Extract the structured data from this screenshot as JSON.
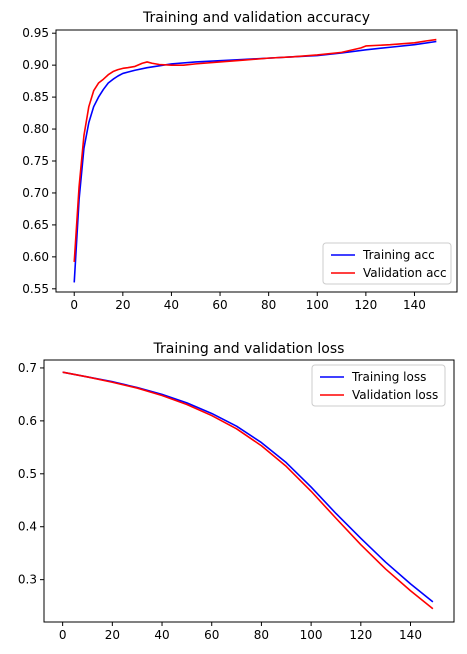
{
  "chart_data": [
    {
      "type": "line",
      "title": "Training and validation accuracy",
      "xlim": [
        -7.5,
        157.5
      ],
      "ylim": [
        0.545,
        0.955
      ],
      "xticks": [
        0,
        20,
        40,
        60,
        80,
        100,
        120,
        140
      ],
      "yticks": [
        0.55,
        0.6,
        0.65,
        0.7,
        0.75,
        0.8,
        0.85,
        0.9,
        0.95
      ],
      "ytick_labels": [
        "0.55",
        "0.60",
        "0.65",
        "0.70",
        "0.75",
        "0.80",
        "0.85",
        "0.90",
        "0.95"
      ],
      "legend_position": "lower right",
      "series": [
        {
          "name": "Training acc",
          "color": "#0000ff",
          "x": [
            0,
            2,
            4,
            6,
            8,
            10,
            12,
            14,
            16,
            18,
            20,
            25,
            30,
            35,
            40,
            50,
            60,
            70,
            80,
            90,
            100,
            110,
            120,
            130,
            140,
            149
          ],
          "values": [
            0.56,
            0.69,
            0.77,
            0.81,
            0.835,
            0.85,
            0.862,
            0.872,
            0.878,
            0.883,
            0.887,
            0.892,
            0.896,
            0.899,
            0.902,
            0.905,
            0.907,
            0.909,
            0.911,
            0.913,
            0.915,
            0.919,
            0.924,
            0.928,
            0.932,
            0.937
          ]
        },
        {
          "name": "Validation acc",
          "color": "#ff0000",
          "x": [
            0,
            2,
            4,
            6,
            8,
            10,
            12,
            14,
            16,
            18,
            20,
            22,
            25,
            28,
            30,
            32,
            35,
            40,
            45,
            50,
            60,
            70,
            80,
            90,
            100,
            110,
            118,
            120,
            130,
            140,
            145,
            149
          ],
          "values": [
            0.592,
            0.71,
            0.79,
            0.835,
            0.86,
            0.872,
            0.878,
            0.885,
            0.89,
            0.893,
            0.895,
            0.896,
            0.898,
            0.903,
            0.905,
            0.903,
            0.901,
            0.9,
            0.9,
            0.902,
            0.905,
            0.908,
            0.911,
            0.913,
            0.916,
            0.92,
            0.927,
            0.93,
            0.932,
            0.935,
            0.938,
            0.94
          ]
        }
      ]
    },
    {
      "type": "line",
      "title": "Training and validation loss",
      "xlim": [
        -7.5,
        157.5
      ],
      "ylim": [
        0.22,
        0.715
      ],
      "xticks": [
        0,
        20,
        40,
        60,
        80,
        100,
        120,
        140
      ],
      "yticks": [
        0.3,
        0.4,
        0.5,
        0.6,
        0.7
      ],
      "ytick_labels": [
        "0.3",
        "0.4",
        "0.5",
        "0.6",
        "0.7"
      ],
      "legend_position": "upper right",
      "series": [
        {
          "name": "Training loss",
          "color": "#0000ff",
          "x": [
            0,
            10,
            20,
            30,
            40,
            50,
            60,
            70,
            80,
            90,
            100,
            110,
            120,
            130,
            140,
            149
          ],
          "values": [
            0.692,
            0.683,
            0.674,
            0.663,
            0.65,
            0.634,
            0.614,
            0.59,
            0.559,
            0.521,
            0.475,
            0.425,
            0.378,
            0.333,
            0.292,
            0.258
          ]
        },
        {
          "name": "Validation loss",
          "color": "#ff0000",
          "x": [
            0,
            10,
            20,
            30,
            40,
            50,
            60,
            70,
            80,
            90,
            100,
            110,
            120,
            130,
            140,
            149
          ],
          "values": [
            0.692,
            0.683,
            0.673,
            0.662,
            0.648,
            0.631,
            0.61,
            0.585,
            0.553,
            0.514,
            0.467,
            0.416,
            0.366,
            0.32,
            0.279,
            0.245
          ]
        }
      ]
    }
  ]
}
